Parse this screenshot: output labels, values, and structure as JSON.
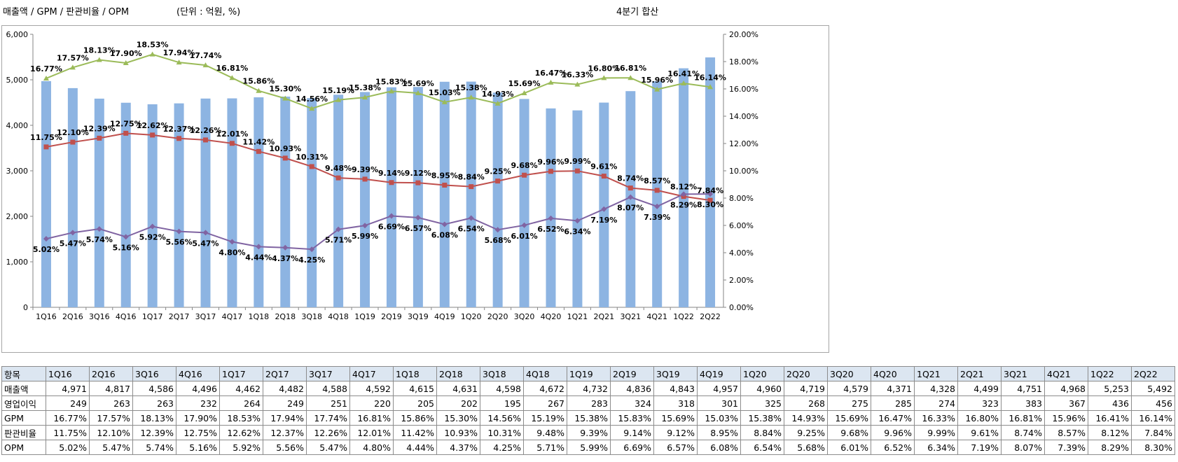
{
  "header": {
    "title": "매출액 / GPM / 판관비율 / OPM",
    "unit": "(단위 : 억원, %)",
    "period": "4분기 합산"
  },
  "colors": {
    "bar": "#8db4e2",
    "gpm": "#9bbb59",
    "sga": "#c0504d",
    "opm": "#8064a2",
    "grid": "#d9d9d9"
  },
  "chart_data": {
    "type": "bar+line",
    "categories": [
      "1Q16",
      "2Q16",
      "3Q16",
      "4Q16",
      "1Q17",
      "2Q17",
      "3Q17",
      "4Q17",
      "1Q18",
      "2Q18",
      "3Q18",
      "4Q18",
      "1Q19",
      "2Q19",
      "3Q19",
      "4Q19",
      "1Q20",
      "2Q20",
      "3Q20",
      "4Q20",
      "1Q21",
      "2Q21",
      "3Q21",
      "4Q21",
      "1Q22",
      "2Q22"
    ],
    "left_axis": {
      "min": 0,
      "max": 6000,
      "ticks": [
        "0",
        "1,000",
        "2,000",
        "3,000",
        "4,000",
        "5,000",
        "6,000"
      ]
    },
    "right_axis": {
      "min": 0,
      "max": 20,
      "ticks": [
        "0.00%",
        "2.00%",
        "4.00%",
        "6.00%",
        "8.00%",
        "10.00%",
        "12.00%",
        "14.00%",
        "16.00%",
        "18.00%",
        "20.00%"
      ]
    },
    "bars": {
      "name": "매출액",
      "values": [
        4971,
        4817,
        4586,
        4496,
        4462,
        4482,
        4588,
        4592,
        4615,
        4631,
        4598,
        4672,
        4732,
        4836,
        4843,
        4957,
        4960,
        4719,
        4579,
        4371,
        4328,
        4499,
        4751,
        4968,
        5253,
        5492
      ]
    },
    "series": [
      {
        "name": "GPM",
        "values": [
          16.77,
          17.57,
          18.13,
          17.9,
          18.53,
          17.94,
          17.74,
          16.81,
          15.86,
          15.3,
          14.56,
          15.19,
          15.38,
          15.83,
          15.69,
          15.03,
          15.38,
          14.93,
          15.69,
          16.47,
          16.33,
          16.8,
          16.81,
          15.96,
          16.41,
          16.14
        ],
        "labels": [
          "16.77%",
          "17.57%",
          "18.13%",
          "17.90%",
          "18.53%",
          "17.94%",
          "17.74%",
          "16.81%",
          "15.86%",
          "15.30%",
          "14.56%",
          "15.19%",
          "15.38%",
          "15.83%",
          "15.69%",
          "15.03%",
          "15.38%",
          "14.93%",
          "15.69%",
          "16.47%",
          "16.33%",
          "16.80%",
          "16.81%",
          "15.96%",
          "16.41%",
          "16.14%"
        ]
      },
      {
        "name": "판관비율",
        "values": [
          11.75,
          12.1,
          12.39,
          12.75,
          12.62,
          12.37,
          12.26,
          12.01,
          11.42,
          10.93,
          10.31,
          9.48,
          9.39,
          9.14,
          9.12,
          8.95,
          8.84,
          9.25,
          9.68,
          9.96,
          9.99,
          9.61,
          8.74,
          8.57,
          8.12,
          7.84
        ],
        "labels": [
          "11.75%",
          "12.10%",
          "12.39%",
          "12.75%",
          "12.62%",
          "12.37%",
          "12.26%",
          "12.01%",
          "11.42%",
          "10.93%",
          "10.31%",
          "9.48%",
          "9.39%",
          "9.14%",
          "9.12%",
          "8.95%",
          "8.84%",
          "9.25%",
          "9.68%",
          "9.96%",
          "9.99%",
          "9.61%",
          "8.74%",
          "8.57%",
          "8.12%",
          "7.84%"
        ]
      },
      {
        "name": "OPM",
        "values": [
          5.02,
          5.47,
          5.74,
          5.16,
          5.92,
          5.56,
          5.47,
          4.8,
          4.44,
          4.37,
          4.25,
          5.71,
          5.99,
          6.69,
          6.57,
          6.08,
          6.54,
          5.68,
          6.01,
          6.52,
          6.34,
          7.19,
          8.07,
          7.39,
          8.29,
          8.3
        ],
        "labels": [
          "5.02%",
          "5.47%",
          "5.74%",
          "5.16%",
          "5.92%",
          "5.56%",
          "5.47%",
          "4.80%",
          "4.44%",
          "4.37%",
          "4.25%",
          "5.71%",
          "5.99%",
          "6.69%",
          "6.57%",
          "6.08%",
          "6.54%",
          "5.68%",
          "6.01%",
          "6.52%",
          "6.34%",
          "7.19%",
          "8.07%",
          "7.39%",
          "8.29%",
          "8.30%"
        ]
      }
    ]
  },
  "table": {
    "header_label": "항목",
    "columns": [
      "1Q16",
      "2Q16",
      "3Q16",
      "4Q16",
      "1Q17",
      "2Q17",
      "3Q17",
      "4Q17",
      "1Q18",
      "2Q18",
      "3Q18",
      "4Q18",
      "1Q19",
      "2Q19",
      "3Q19",
      "4Q19",
      "1Q20",
      "2Q20",
      "3Q20",
      "4Q20",
      "1Q21",
      "2Q21",
      "3Q21",
      "4Q21",
      "1Q22",
      "2Q22"
    ],
    "rows": [
      {
        "label": "매출액",
        "cells": [
          "4,971",
          "4,817",
          "4,586",
          "4,496",
          "4,462",
          "4,482",
          "4,588",
          "4,592",
          "4,615",
          "4,631",
          "4,598",
          "4,672",
          "4,732",
          "4,836",
          "4,843",
          "4,957",
          "4,960",
          "4,719",
          "4,579",
          "4,371",
          "4,328",
          "4,499",
          "4,751",
          "4,968",
          "5,253",
          "5,492"
        ]
      },
      {
        "label": "영업이익",
        "cells": [
          "249",
          "263",
          "263",
          "232",
          "264",
          "249",
          "251",
          "220",
          "205",
          "202",
          "195",
          "267",
          "283",
          "324",
          "318",
          "301",
          "325",
          "268",
          "275",
          "285",
          "274",
          "323",
          "383",
          "367",
          "436",
          "456"
        ]
      },
      {
        "label": "GPM",
        "cells": [
          "16.77%",
          "17.57%",
          "18.13%",
          "17.90%",
          "18.53%",
          "17.94%",
          "17.74%",
          "16.81%",
          "15.86%",
          "15.30%",
          "14.56%",
          "15.19%",
          "15.38%",
          "15.83%",
          "15.69%",
          "15.03%",
          "15.38%",
          "14.93%",
          "15.69%",
          "16.47%",
          "16.33%",
          "16.80%",
          "16.81%",
          "15.96%",
          "16.41%",
          "16.14%"
        ]
      },
      {
        "label": "판관비율",
        "cells": [
          "11.75%",
          "12.10%",
          "12.39%",
          "12.75%",
          "12.62%",
          "12.37%",
          "12.26%",
          "12.01%",
          "11.42%",
          "10.93%",
          "10.31%",
          "9.48%",
          "9.39%",
          "9.14%",
          "9.12%",
          "8.95%",
          "8.84%",
          "9.25%",
          "9.68%",
          "9.96%",
          "9.99%",
          "9.61%",
          "8.74%",
          "8.57%",
          "8.12%",
          "7.84%"
        ]
      },
      {
        "label": "OPM",
        "cells": [
          "5.02%",
          "5.47%",
          "5.74%",
          "5.16%",
          "5.92%",
          "5.56%",
          "5.47%",
          "4.80%",
          "4.44%",
          "4.37%",
          "4.25%",
          "5.71%",
          "5.99%",
          "6.69%",
          "6.57%",
          "6.08%",
          "6.54%",
          "5.68%",
          "6.01%",
          "6.52%",
          "6.34%",
          "7.19%",
          "8.07%",
          "7.39%",
          "8.29%",
          "8.30%"
        ]
      }
    ]
  }
}
